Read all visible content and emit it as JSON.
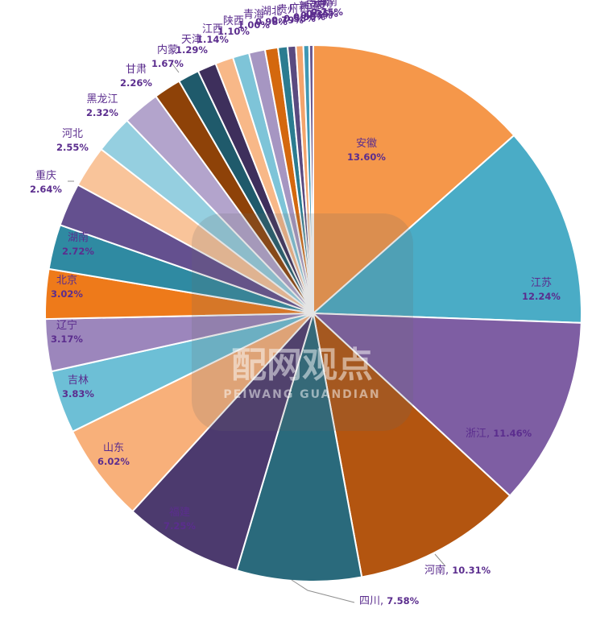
{
  "chart_data": {
    "type": "pie",
    "title": "",
    "slices": [
      {
        "label": "安徽",
        "value_label": "13.60%",
        "value": 13.6,
        "color": "#f5974a"
      },
      {
        "label": "江苏",
        "value_label": "12.24%",
        "value": 12.24,
        "color": "#4aacc6"
      },
      {
        "label": "浙江",
        "value_label": "11.46%",
        "value": 11.46,
        "color": "#7e5ea3"
      },
      {
        "label": "河南",
        "value_label": "10.31%",
        "value": 10.31,
        "color": "#b35510"
      },
      {
        "label": "四川",
        "value_label": "7.58%",
        "value": 7.58,
        "color": "#2a6a7c"
      },
      {
        "label": "福建",
        "value_label": "7.25%",
        "value": 7.25,
        "color": "#4c3a6e"
      },
      {
        "label": "山东",
        "value_label": "6.02%",
        "value": 6.02,
        "color": "#f8b07a"
      },
      {
        "label": "吉林",
        "value_label": "3.83%",
        "value": 3.83,
        "color": "#6dbfd6"
      },
      {
        "label": "辽宁",
        "value_label": "3.17%",
        "value": 3.17,
        "color": "#9c86bc"
      },
      {
        "label": "北京",
        "value_label": "3.02%",
        "value": 3.02,
        "color": "#ee7a1a"
      },
      {
        "label": "湖南",
        "value_label": "2.72%",
        "value": 2.72,
        "color": "#2f8aa2"
      },
      {
        "label": "重庆",
        "value_label": "2.64%",
        "value": 2.64,
        "color": "#64508f"
      },
      {
        "label": "河北",
        "value_label": "2.55%",
        "value": 2.55,
        "color": "#f9c49a"
      },
      {
        "label": "黑龙江",
        "value_label": "2.32%",
        "value": 2.32,
        "color": "#95cfe0"
      },
      {
        "label": "甘肃",
        "value_label": "2.26%",
        "value": 2.26,
        "color": "#b3a4cc"
      },
      {
        "label": "内蒙",
        "value_label": "1.67%",
        "value": 1.67,
        "color": "#8e4208"
      },
      {
        "label": "天津",
        "value_label": "1.29%",
        "value": 1.29,
        "color": "#1f5a6b"
      },
      {
        "label": "江西",
        "value_label": "1.14%",
        "value": 1.14,
        "color": "#3e2f5c"
      },
      {
        "label": "陕西",
        "value_label": "1.10%",
        "value": 1.1,
        "color": "#f8b888"
      },
      {
        "label": "青海",
        "value_label": "1.00%",
        "value": 1.0,
        "color": "#7ec4d8"
      },
      {
        "label": "湖北",
        "value_label": "0.98%",
        "value": 0.98,
        "color": "#a696c2"
      },
      {
        "label": "贵州",
        "value_label": "0.79%",
        "value": 0.79,
        "color": "#d4680e"
      },
      {
        "label": "广西",
        "value_label": "0.58%",
        "value": 0.58,
        "color": "#2b7c90"
      },
      {
        "label": "新疆",
        "value_label": "0.50%",
        "value": 0.5,
        "color": "#5a4a80"
      },
      {
        "label": "宁夏",
        "value_label": "0.45%",
        "value": 0.45,
        "color": "#f3a46c"
      },
      {
        "label": "云南",
        "value_label": "0.35%",
        "value": 0.35,
        "color": "#3f98b4"
      },
      {
        "label": "海南",
        "value_label": "0.25%",
        "value": 0.25,
        "color": "#6a5a92"
      }
    ]
  },
  "watermark": {
    "cn": "配网观点",
    "en": "PEIWANG GUANDIAN"
  }
}
